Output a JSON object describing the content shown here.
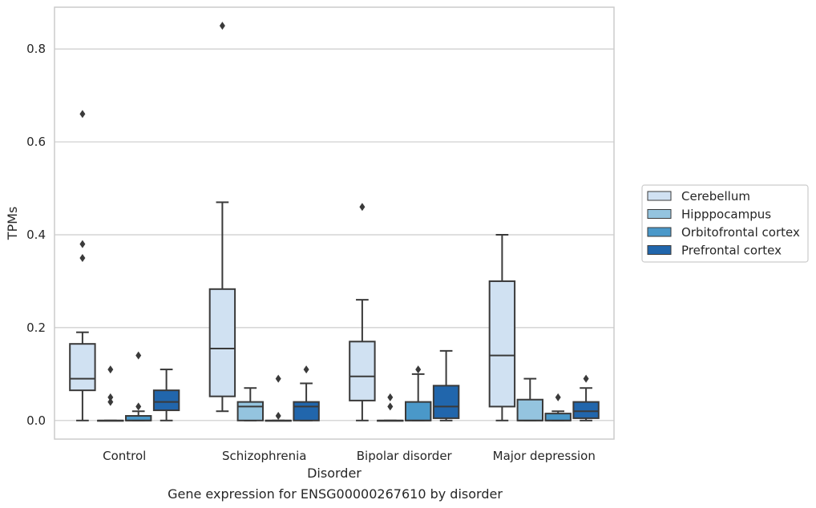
{
  "chart_data": {
    "type": "box",
    "title": "",
    "caption": "Gene expression for ENSG00000267610 by disorder",
    "xlabel": "Disorder",
    "ylabel": "TPMs",
    "ylim": [
      -0.04,
      0.89
    ],
    "yticks": [
      "0.0",
      "0.2",
      "0.4",
      "0.6",
      "0.8"
    ],
    "ytick_values": [
      0.0,
      0.2,
      0.4,
      0.6,
      0.8
    ],
    "grid": "horizontal",
    "legend_position": "right",
    "categories": [
      "Control",
      "Schizophrenia",
      "Bipolar disorder",
      "Major depression"
    ],
    "series": [
      {
        "name": "Cerebellum",
        "color": "#d0e1f2",
        "boxes": [
          {
            "whisker_low": 0.0,
            "q1": 0.065,
            "median": 0.09,
            "q3": 0.165,
            "whisker_high": 0.19,
            "outliers": [
              0.35,
              0.38,
              0.66
            ]
          },
          {
            "whisker_low": 0.02,
            "q1": 0.052,
            "median": 0.155,
            "q3": 0.283,
            "whisker_high": 0.47,
            "outliers": [
              0.85
            ]
          },
          {
            "whisker_low": 0.0,
            "q1": 0.043,
            "median": 0.095,
            "q3": 0.17,
            "whisker_high": 0.26,
            "outliers": [
              0.46
            ]
          },
          {
            "whisker_low": 0.0,
            "q1": 0.03,
            "median": 0.14,
            "q3": 0.3,
            "whisker_high": 0.4,
            "outliers": []
          }
        ]
      },
      {
        "name": "Hipppocampus",
        "color": "#94c4df",
        "boxes": [
          {
            "whisker_low": 0.0,
            "q1": 0.0,
            "median": 0.0,
            "q3": 0.0,
            "whisker_high": 0.0,
            "outliers": [
              0.04,
              0.05,
              0.11
            ]
          },
          {
            "whisker_low": 0.0,
            "q1": 0.0,
            "median": 0.03,
            "q3": 0.04,
            "whisker_high": 0.07,
            "outliers": []
          },
          {
            "whisker_low": 0.0,
            "q1": 0.0,
            "median": 0.0,
            "q3": 0.0,
            "whisker_high": 0.0,
            "outliers": [
              0.03,
              0.05
            ]
          },
          {
            "whisker_low": 0.0,
            "q1": 0.0,
            "median": 0.0,
            "q3": 0.045,
            "whisker_high": 0.09,
            "outliers": []
          }
        ]
      },
      {
        "name": "Orbitofrontal cortex",
        "color": "#4a98c9",
        "boxes": [
          {
            "whisker_low": 0.0,
            "q1": 0.0,
            "median": 0.0,
            "q3": 0.01,
            "whisker_high": 0.02,
            "outliers": [
              0.03,
              0.14
            ]
          },
          {
            "whisker_low": 0.0,
            "q1": 0.0,
            "median": 0.0,
            "q3": 0.0,
            "whisker_high": 0.0,
            "outliers": [
              0.01,
              0.09
            ]
          },
          {
            "whisker_low": 0.0,
            "q1": 0.0,
            "median": 0.0,
            "q3": 0.04,
            "whisker_high": 0.1,
            "outliers": [
              0.11
            ]
          },
          {
            "whisker_low": 0.0,
            "q1": 0.0,
            "median": 0.0,
            "q3": 0.015,
            "whisker_high": 0.02,
            "outliers": [
              0.05
            ]
          }
        ]
      },
      {
        "name": "Prefrontal cortex",
        "color": "#2166ac",
        "boxes": [
          {
            "whisker_low": 0.0,
            "q1": 0.022,
            "median": 0.04,
            "q3": 0.065,
            "whisker_high": 0.11,
            "outliers": []
          },
          {
            "whisker_low": 0.0,
            "q1": 0.0,
            "median": 0.03,
            "q3": 0.04,
            "whisker_high": 0.08,
            "outliers": [
              0.11
            ]
          },
          {
            "whisker_low": 0.0,
            "q1": 0.005,
            "median": 0.03,
            "q3": 0.075,
            "whisker_high": 0.15,
            "outliers": []
          },
          {
            "whisker_low": 0.0,
            "q1": 0.005,
            "median": 0.02,
            "q3": 0.04,
            "whisker_high": 0.07,
            "outliers": [
              0.09
            ]
          }
        ]
      }
    ]
  }
}
